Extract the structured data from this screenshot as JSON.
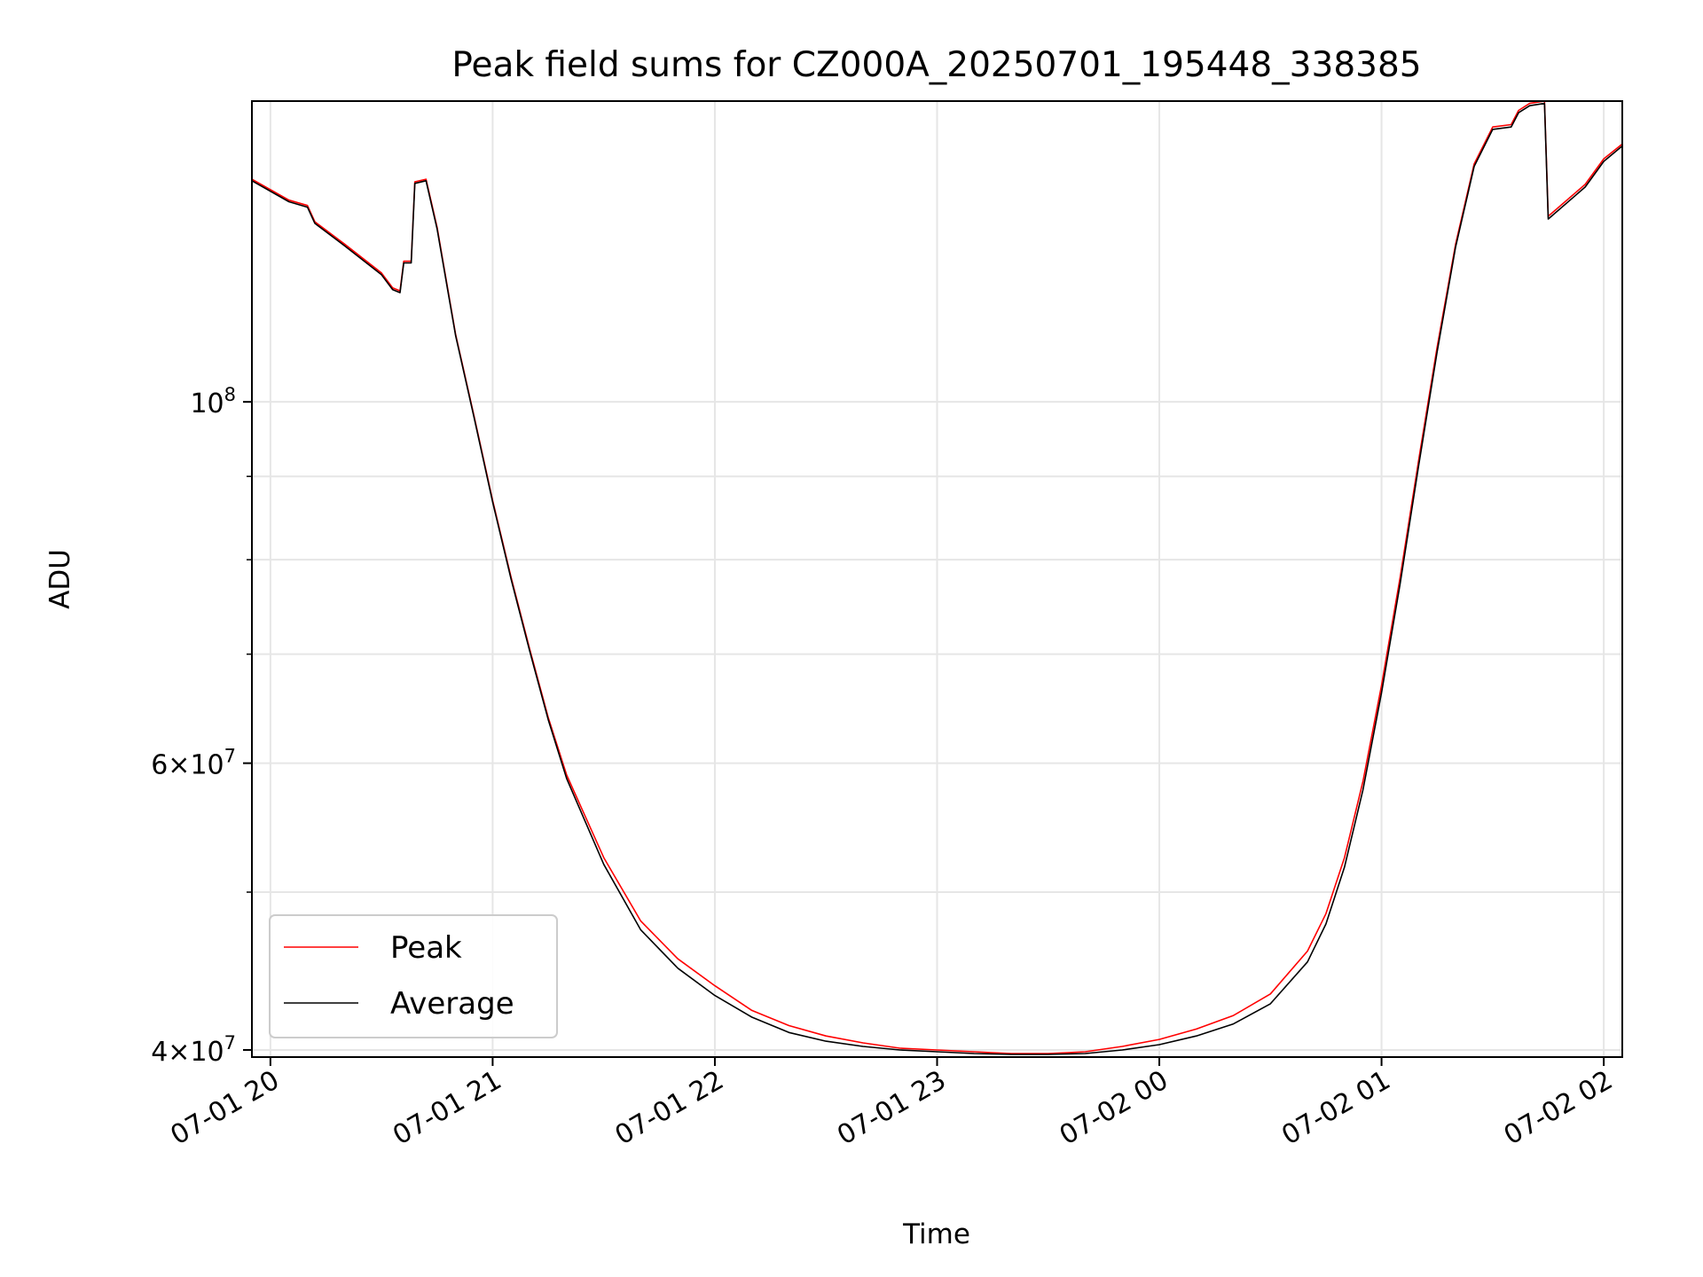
{
  "chart_data": {
    "type": "line",
    "title": "Peak field sums for CZ000A_20250701_195448_338385",
    "xlabel": "Time",
    "ylabel": "ADU",
    "x_ticks": [
      "07-01 20",
      "07-01 21",
      "07-01 22",
      "07-01 23",
      "07-02 00",
      "07-02 01",
      "07-02 02"
    ],
    "y_ticks": [
      {
        "value": 40000000,
        "mantissa": "4",
        "exponent": "7"
      },
      {
        "value": 60000000,
        "mantissa": "6",
        "exponent": "7"
      },
      {
        "value": 100000000,
        "mantissa": "",
        "exponent": "8"
      }
    ],
    "y_scale": "log",
    "xlim": [
      "2025-07-01 19:55",
      "2025-07-02 02:05"
    ],
    "ylim": [
      39600000,
      153000000
    ],
    "grid": true,
    "legend_position": "lower-left",
    "series": [
      {
        "name": "Peak",
        "color": "#ff0000",
        "points": [
          [
            "2025-07-01 19:55",
            137000000
          ],
          [
            "2025-07-01 20:05",
            133000000
          ],
          [
            "2025-07-01 20:10",
            132000000
          ],
          [
            "2025-07-01 20:12",
            129000000
          ],
          [
            "2025-07-01 20:20",
            125000000
          ],
          [
            "2025-07-01 20:30",
            120000000
          ],
          [
            "2025-07-01 20:33",
            117500000
          ],
          [
            "2025-07-01 20:35",
            117000000
          ],
          [
            "2025-07-01 20:36",
            122000000
          ],
          [
            "2025-07-01 20:38",
            122000000
          ],
          [
            "2025-07-01 20:39",
            136500000
          ],
          [
            "2025-07-01 20:42",
            137000000
          ],
          [
            "2025-07-01 20:45",
            128000000
          ],
          [
            "2025-07-01 20:50",
            110000000
          ],
          [
            "2025-07-01 20:55",
            98000000
          ],
          [
            "2025-07-01 21:00",
            87000000
          ],
          [
            "2025-07-01 21:05",
            78000000
          ],
          [
            "2025-07-01 21:10",
            70500000
          ],
          [
            "2025-07-01 21:15",
            64000000
          ],
          [
            "2025-07-01 21:20",
            59000000
          ],
          [
            "2025-07-01 21:30",
            52500000
          ],
          [
            "2025-07-01 21:40",
            48000000
          ],
          [
            "2025-07-01 21:50",
            45500000
          ],
          [
            "2025-07-01 22:00",
            43800000
          ],
          [
            "2025-07-01 22:10",
            42300000
          ],
          [
            "2025-07-01 22:20",
            41400000
          ],
          [
            "2025-07-01 22:30",
            40800000
          ],
          [
            "2025-07-01 22:40",
            40400000
          ],
          [
            "2025-07-01 22:50",
            40100000
          ],
          [
            "2025-07-01 23:00",
            40000000
          ],
          [
            "2025-07-01 23:10",
            39900000
          ],
          [
            "2025-07-01 23:20",
            39800000
          ],
          [
            "2025-07-01 23:30",
            39800000
          ],
          [
            "2025-07-01 23:40",
            39900000
          ],
          [
            "2025-07-01 23:50",
            40200000
          ],
          [
            "2025-07-02 00:00",
            40600000
          ],
          [
            "2025-07-02 00:10",
            41200000
          ],
          [
            "2025-07-02 00:20",
            42000000
          ],
          [
            "2025-07-02 00:30",
            43300000
          ],
          [
            "2025-07-02 00:40",
            46000000
          ],
          [
            "2025-07-02 00:45",
            48500000
          ],
          [
            "2025-07-02 00:50",
            52500000
          ],
          [
            "2025-07-02 00:55",
            58500000
          ],
          [
            "2025-07-02 01:00",
            67000000
          ],
          [
            "2025-07-02 01:05",
            78000000
          ],
          [
            "2025-07-02 01:10",
            92000000
          ],
          [
            "2025-07-02 01:15",
            108000000
          ],
          [
            "2025-07-02 01:20",
            125000000
          ],
          [
            "2025-07-02 01:25",
            140000000
          ],
          [
            "2025-07-02 01:30",
            147500000
          ],
          [
            "2025-07-02 01:35",
            148000000
          ],
          [
            "2025-07-02 01:37",
            151000000
          ],
          [
            "2025-07-02 01:40",
            152500000
          ],
          [
            "2025-07-02 01:44",
            153000000
          ],
          [
            "2025-07-02 01:45",
            130000000
          ],
          [
            "2025-07-02 01:55",
            136000000
          ],
          [
            "2025-07-02 02:00",
            141000000
          ],
          [
            "2025-07-02 02:05",
            144000000
          ]
        ]
      },
      {
        "name": "Average",
        "color": "#000000",
        "points": [
          [
            "2025-07-01 19:55",
            136700000
          ],
          [
            "2025-07-01 20:05",
            132700000
          ],
          [
            "2025-07-01 20:10",
            131700000
          ],
          [
            "2025-07-01 20:12",
            128700000
          ],
          [
            "2025-07-01 20:20",
            124700000
          ],
          [
            "2025-07-01 20:30",
            119700000
          ],
          [
            "2025-07-01 20:33",
            117200000
          ],
          [
            "2025-07-01 20:35",
            116700000
          ],
          [
            "2025-07-01 20:36",
            121700000
          ],
          [
            "2025-07-01 20:38",
            121700000
          ],
          [
            "2025-07-01 20:39",
            136200000
          ],
          [
            "2025-07-01 20:42",
            136700000
          ],
          [
            "2025-07-01 20:45",
            127700000
          ],
          [
            "2025-07-01 20:50",
            109800000
          ],
          [
            "2025-07-01 20:55",
            97800000
          ],
          [
            "2025-07-01 21:00",
            86800000
          ],
          [
            "2025-07-01 21:05",
            77800000
          ],
          [
            "2025-07-01 21:10",
            70300000
          ],
          [
            "2025-07-01 21:15",
            63800000
          ],
          [
            "2025-07-01 21:20",
            58700000
          ],
          [
            "2025-07-01 21:30",
            52000000
          ],
          [
            "2025-07-01 21:40",
            47400000
          ],
          [
            "2025-07-01 21:50",
            44900000
          ],
          [
            "2025-07-01 22:00",
            43200000
          ],
          [
            "2025-07-01 22:10",
            41900000
          ],
          [
            "2025-07-01 22:20",
            41000000
          ],
          [
            "2025-07-01 22:30",
            40500000
          ],
          [
            "2025-07-01 22:40",
            40200000
          ],
          [
            "2025-07-01 22:50",
            40000000
          ],
          [
            "2025-07-01 23:00",
            39900000
          ],
          [
            "2025-07-01 23:10",
            39800000
          ],
          [
            "2025-07-01 23:20",
            39750000
          ],
          [
            "2025-07-01 23:30",
            39750000
          ],
          [
            "2025-07-01 23:40",
            39800000
          ],
          [
            "2025-07-01 23:50",
            40000000
          ],
          [
            "2025-07-02 00:00",
            40300000
          ],
          [
            "2025-07-02 00:10",
            40800000
          ],
          [
            "2025-07-02 00:20",
            41500000
          ],
          [
            "2025-07-02 00:30",
            42700000
          ],
          [
            "2025-07-02 00:40",
            45300000
          ],
          [
            "2025-07-02 00:45",
            47800000
          ],
          [
            "2025-07-02 00:50",
            51800000
          ],
          [
            "2025-07-02 00:55",
            57800000
          ],
          [
            "2025-07-02 01:00",
            66300000
          ],
          [
            "2025-07-02 01:05",
            77300000
          ],
          [
            "2025-07-02 01:10",
            91300000
          ],
          [
            "2025-07-02 01:15",
            107300000
          ],
          [
            "2025-07-02 01:20",
            124500000
          ],
          [
            "2025-07-02 01:25",
            139500000
          ],
          [
            "2025-07-02 01:30",
            147000000
          ],
          [
            "2025-07-02 01:35",
            147500000
          ],
          [
            "2025-07-02 01:37",
            150500000
          ],
          [
            "2025-07-02 01:40",
            152000000
          ],
          [
            "2025-07-02 01:44",
            152500000
          ],
          [
            "2025-07-02 01:45",
            129500000
          ],
          [
            "2025-07-02 01:55",
            135500000
          ],
          [
            "2025-07-02 02:00",
            140500000
          ],
          [
            "2025-07-02 02:05",
            143600000
          ]
        ]
      }
    ]
  }
}
